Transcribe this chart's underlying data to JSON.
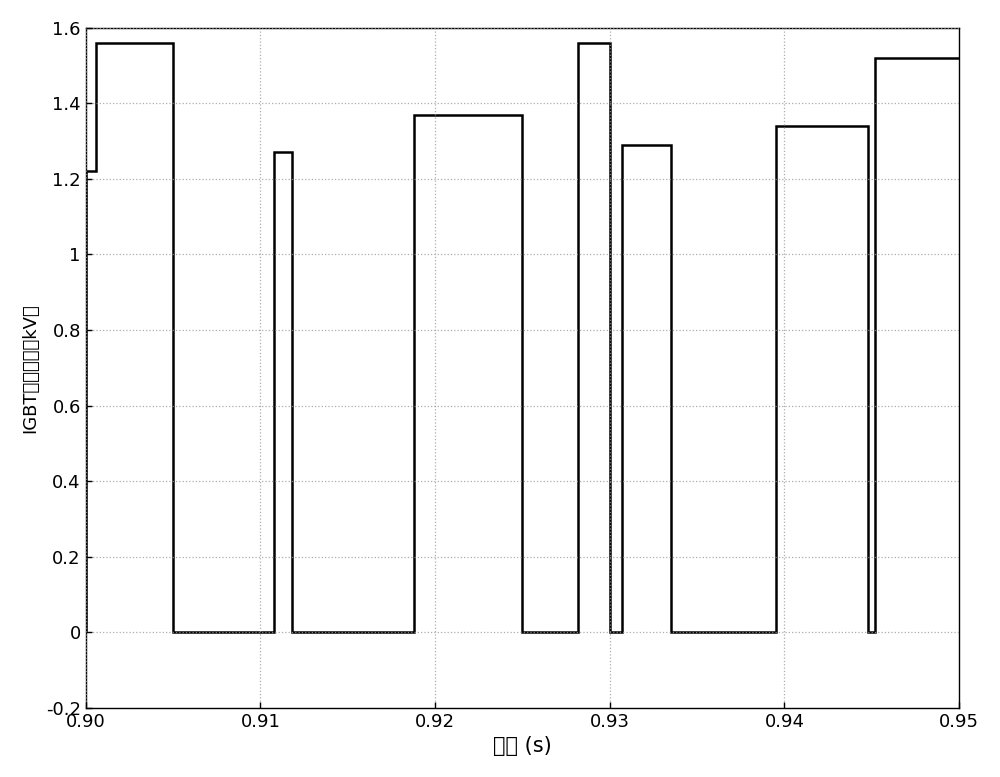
{
  "xlim": [
    0.9,
    0.95
  ],
  "ylim": [
    -0.2,
    1.6
  ],
  "xlabel": "时间 (s)",
  "ylabel": "IGBT芯片电压（kV）",
  "xticks": [
    0.9,
    0.91,
    0.92,
    0.93,
    0.94,
    0.95
  ],
  "yticks": [
    -0.2,
    0.0,
    0.2,
    0.4,
    0.6,
    0.8,
    1.0,
    1.2,
    1.4,
    1.6
  ],
  "line_color": "#000000",
  "line_width": 1.8,
  "background_color": "#ffffff",
  "grid_color": "#999999",
  "segments": [
    [
      0.9,
      0.0
    ],
    [
      0.9,
      1.22
    ],
    [
      0.9006,
      1.22
    ],
    [
      0.9006,
      1.56
    ],
    [
      0.905,
      1.56
    ],
    [
      0.905,
      0.0
    ],
    [
      0.9108,
      0.0
    ],
    [
      0.9108,
      1.27
    ],
    [
      0.9118,
      1.27
    ],
    [
      0.9118,
      0.0
    ],
    [
      0.9188,
      0.0
    ],
    [
      0.9188,
      1.37
    ],
    [
      0.925,
      1.37
    ],
    [
      0.925,
      0.0
    ],
    [
      0.9282,
      0.0
    ],
    [
      0.9282,
      1.56
    ],
    [
      0.93,
      1.56
    ],
    [
      0.93,
      0.0
    ],
    [
      0.9307,
      0.0
    ],
    [
      0.9307,
      1.29
    ],
    [
      0.9335,
      1.29
    ],
    [
      0.9335,
      0.0
    ],
    [
      0.9395,
      0.0
    ],
    [
      0.9395,
      1.34
    ],
    [
      0.9448,
      1.34
    ],
    [
      0.9448,
      0.0
    ],
    [
      0.9452,
      0.0
    ],
    [
      0.9452,
      1.52
    ],
    [
      0.95,
      1.52
    ]
  ]
}
